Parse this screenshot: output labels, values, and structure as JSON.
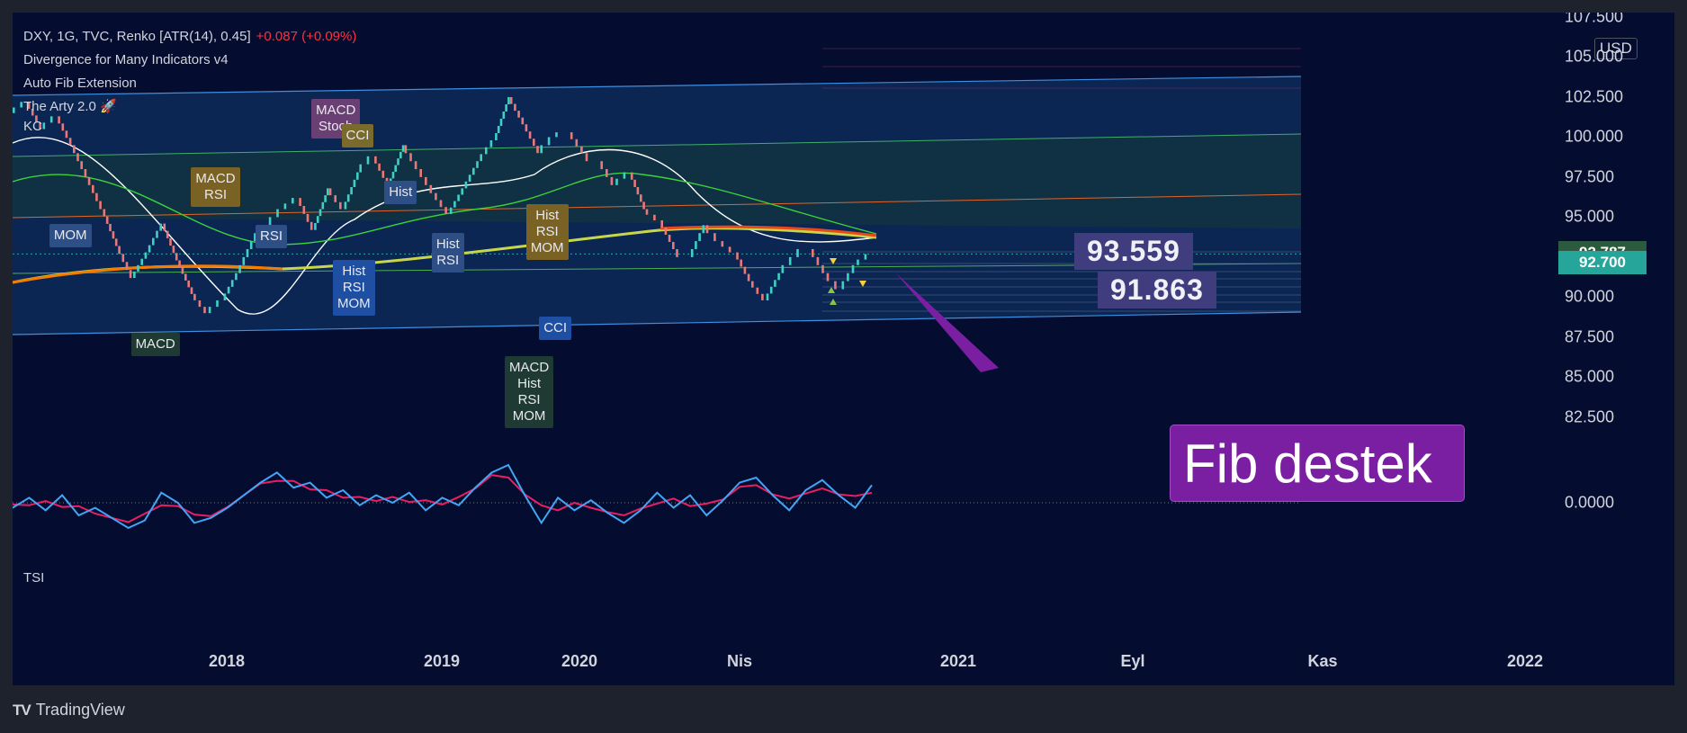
{
  "legend": {
    "symbol_line": "DXY, 1G, TVC, Renko [ATR(14), 0.45]",
    "change": "+0.087 (+0.09%)",
    "indicators": [
      "Divergence for Many Indicators v4",
      "Auto Fib Extension",
      "The Arty 2.0 🚀"
    ],
    "kc_label": "KC",
    "tsi_label": "TSI"
  },
  "currency": "USD",
  "price_tags": [
    {
      "label": "92.787",
      "value": 92.787,
      "color": "#2b5a3f"
    },
    {
      "label": "92.700",
      "value": 92.7,
      "color": "#26a69a"
    }
  ],
  "big_labels": [
    {
      "text": "93.559"
    },
    {
      "text": "91.863"
    }
  ],
  "callout": {
    "text": "Fib destek",
    "color": "#7b1fa2"
  },
  "branding": {
    "name": "TradingView",
    "mark": "TV"
  },
  "divergence_labels": [
    {
      "text": "MOM",
      "color": "#2e4f86",
      "t": 0.07,
      "price": 94.6
    },
    {
      "text": "MACD RSI",
      "color": "#7a6224",
      "t": 0.235,
      "price": 98.1
    },
    {
      "text": "MACD Stoch",
      "color": "#6a3f73",
      "t": 0.375,
      "price": 102.4
    },
    {
      "text": "CCI",
      "color": "#7a6a2c",
      "t": 0.41,
      "price": 100.8
    },
    {
      "text": "RSI",
      "color": "#2e4f86",
      "t": 0.31,
      "price": 94.5
    },
    {
      "text": "Hist RSI MOM",
      "color": "#1e4fa3",
      "t": 0.4,
      "price": 92.3
    },
    {
      "text": "Hist",
      "color": "#2e4f86",
      "t": 0.46,
      "price": 97.3
    },
    {
      "text": "Hist RSI",
      "color": "#2e4f86",
      "t": 0.515,
      "price": 94.0
    },
    {
      "text": "MACD",
      "color": "#1e3a32",
      "t": 0.165,
      "price": 87.8
    },
    {
      "text": "Hist RSI MOM",
      "color": "#7a6224",
      "t": 0.625,
      "price": 95.8
    },
    {
      "text": "MACD Hist RSI MOM",
      "color": "#1e3a32",
      "t": 0.6,
      "price": 86.3
    },
    {
      "text": "CCI",
      "color": "#1e4fa3",
      "t": 0.64,
      "price": 88.8
    }
  ],
  "chart_data": {
    "type": "renko",
    "symbol": "DXY",
    "y_axis": {
      "ticks": [
        "107.500",
        "105.000",
        "102.500",
        "100.000",
        "97.500",
        "95.000",
        "90.000",
        "87.500",
        "85.000",
        "82.500"
      ],
      "tick_values": [
        107.5,
        105,
        102.5,
        100,
        97.5,
        95,
        90,
        87.5,
        85,
        82.5
      ],
      "ylim": [
        81.2,
        107.5
      ]
    },
    "x_axis": {
      "ticks": [
        "2018",
        "2019",
        "2020",
        "Nis",
        "2021",
        "Eyl",
        "Kas",
        "2022"
      ]
    },
    "price_path": [
      101.5,
      102.2,
      100.5,
      101.3,
      99.5,
      97.5,
      95.5,
      93.2,
      91.2,
      92.8,
      94.6,
      92.3,
      90.2,
      89.0,
      89.8,
      91.5,
      93.5,
      94.5,
      95.5,
      96.2,
      94.2,
      96.8,
      95.5,
      97.8,
      98.8,
      97.0,
      99.5,
      98.0,
      96.5,
      95.2,
      96.8,
      98.5,
      99.8,
      102.5,
      100.8,
      99.0,
      100.0,
      100.3,
      99.0,
      98.5,
      97.0,
      97.8,
      95.5,
      94.8,
      93.0,
      92.5,
      94.5,
      93.5,
      92.8,
      91.0,
      89.8,
      91.5,
      92.5,
      93.0,
      91.5,
      90.5,
      92.0,
      92.7
    ],
    "tsi": [
      -0.2,
      0.2,
      -0.3,
      0.3,
      -0.5,
      -0.2,
      -0.6,
      -1.0,
      -0.7,
      0.4,
      0.0,
      -0.8,
      -0.6,
      -0.2,
      0.3,
      0.8,
      1.2,
      0.6,
      0.8,
      0.2,
      0.5,
      -0.1,
      0.3,
      0.0,
      0.4,
      -0.3,
      0.2,
      -0.1,
      0.6,
      1.2,
      1.5,
      0.3,
      -0.8,
      0.2,
      -0.3,
      0.1,
      -0.4,
      -0.8,
      -0.3,
      0.4,
      -0.2,
      0.3,
      -0.5,
      0.1,
      0.8,
      1.0,
      0.3,
      -0.3,
      0.5,
      0.9,
      0.3,
      -0.2,
      0.7
    ],
    "tsi_ticks": [
      "0.0000"
    ],
    "grid": false
  }
}
